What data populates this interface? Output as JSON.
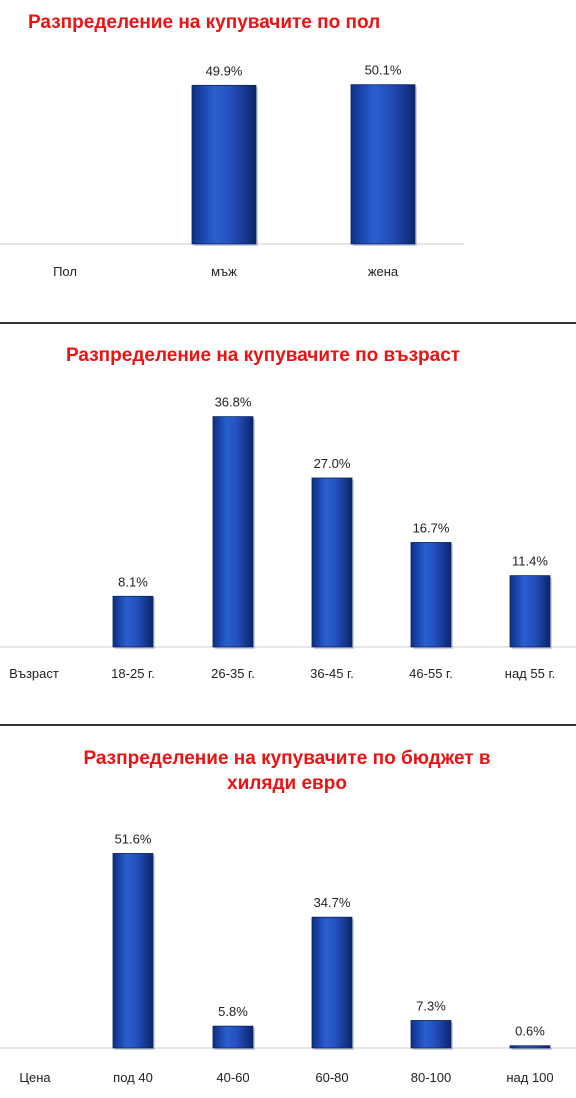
{
  "chart_data": [
    {
      "type": "bar",
      "title": "Разпределение на купувачите по пол",
      "xlabel": "Пол",
      "categories": [
        "мъж",
        "жена"
      ],
      "values": [
        49.9,
        50.1
      ],
      "value_labels": [
        "49.9%",
        "50.1%"
      ],
      "grid": false,
      "legend": "none",
      "bar_color": "#1f49b0"
    },
    {
      "type": "bar",
      "title": "Разпределение на купувачите по възраст",
      "xlabel": "Възраст",
      "categories": [
        "18-25 г.",
        "26-35 г.",
        "36-45 г.",
        "46-55 г.",
        "над 55 г."
      ],
      "values": [
        8.1,
        36.8,
        27.0,
        16.7,
        11.4
      ],
      "value_labels": [
        "8.1%",
        "36.8%",
        "27.0%",
        "16.7%",
        "11.4%"
      ],
      "grid": false,
      "legend": "none",
      "bar_color": "#1f49b0"
    },
    {
      "type": "bar",
      "title": "Разпределение на купувачите по бюджет в хиляди евро",
      "xlabel": "Цена",
      "categories": [
        "под 40",
        "40-60",
        "60-80",
        "80-100",
        "над 100"
      ],
      "values": [
        51.6,
        5.8,
        34.7,
        7.3,
        0.6
      ],
      "value_labels": [
        "51.6%",
        "5.8%",
        "34.7%",
        "7.3%",
        "0.6%"
      ],
      "grid": false,
      "legend": "none",
      "bar_color": "#1f49b0"
    }
  ]
}
